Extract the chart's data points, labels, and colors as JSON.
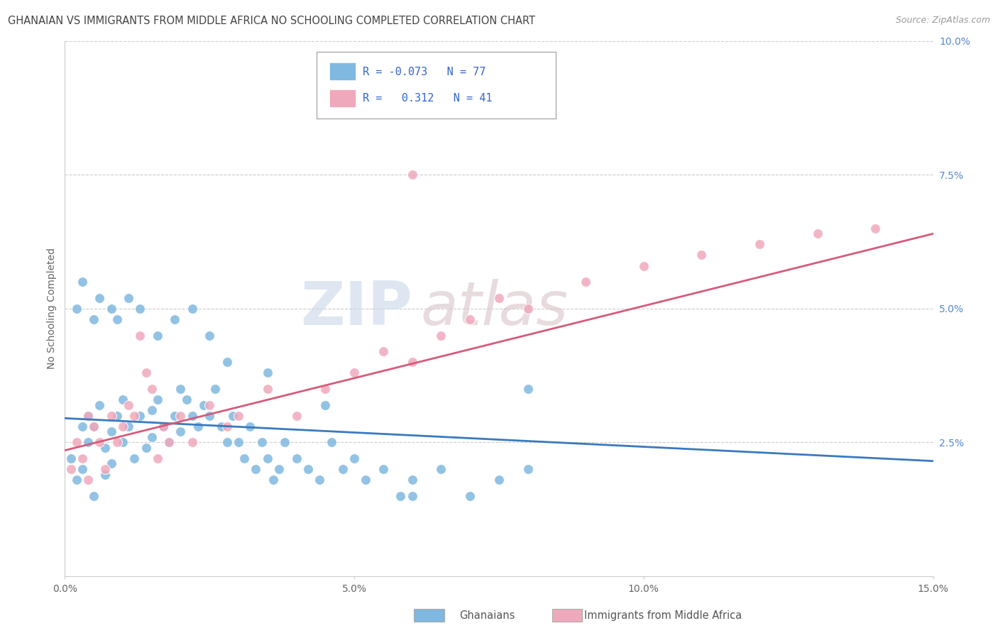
{
  "title": "GHANAIAN VS IMMIGRANTS FROM MIDDLE AFRICA NO SCHOOLING COMPLETED CORRELATION CHART",
  "source": "Source: ZipAtlas.com",
  "ylabel": "No Schooling Completed",
  "xlim": [
    0.0,
    0.15
  ],
  "ylim": [
    0.0,
    0.1
  ],
  "xtick_vals": [
    0.0,
    0.05,
    0.1,
    0.15
  ],
  "xtick_labels": [
    "0.0%",
    "5.0%",
    "10.0%",
    "15.0%"
  ],
  "ytick_vals": [
    0.0,
    0.025,
    0.05,
    0.075,
    0.1
  ],
  "ytick_labels": [
    "",
    "2.5%",
    "5.0%",
    "7.5%",
    "10.0%"
  ],
  "legend_line1": "R = -0.073   N = 77",
  "legend_line2": "R =   0.312   N = 41",
  "blue_scatter": "#7fb8e0",
  "pink_scatter": "#f0a8bc",
  "blue_line": "#3a7abf",
  "pink_line": "#d45c7a",
  "title_color": "#444444",
  "source_color": "#999999",
  "tick_color_x": "#666666",
  "tick_color_y": "#5588cc",
  "ylabel_color": "#666666",
  "grid_color": "#cccccc",
  "legend_text_color": "#3366cc",
  "watermark_zip_color": "#c8d8e8",
  "watermark_atlas_color": "#d8c4c8",
  "bottom_legend_color": "#555555",
  "ghanaian_x": [
    0.001,
    0.002,
    0.003,
    0.003,
    0.004,
    0.004,
    0.005,
    0.005,
    0.006,
    0.007,
    0.007,
    0.008,
    0.008,
    0.009,
    0.01,
    0.01,
    0.011,
    0.012,
    0.013,
    0.014,
    0.015,
    0.015,
    0.016,
    0.017,
    0.018,
    0.019,
    0.02,
    0.02,
    0.021,
    0.022,
    0.023,
    0.024,
    0.025,
    0.026,
    0.027,
    0.028,
    0.029,
    0.03,
    0.031,
    0.032,
    0.033,
    0.034,
    0.035,
    0.036,
    0.037,
    0.038,
    0.04,
    0.042,
    0.044,
    0.046,
    0.048,
    0.05,
    0.052,
    0.055,
    0.058,
    0.06,
    0.065,
    0.07,
    0.075,
    0.08,
    0.002,
    0.003,
    0.005,
    0.006,
    0.008,
    0.009,
    0.011,
    0.013,
    0.016,
    0.019,
    0.022,
    0.025,
    0.028,
    0.035,
    0.045,
    0.06,
    0.08
  ],
  "ghanaian_y": [
    0.022,
    0.018,
    0.028,
    0.02,
    0.025,
    0.03,
    0.028,
    0.015,
    0.032,
    0.024,
    0.019,
    0.027,
    0.021,
    0.03,
    0.025,
    0.033,
    0.028,
    0.022,
    0.03,
    0.024,
    0.031,
    0.026,
    0.033,
    0.028,
    0.025,
    0.03,
    0.035,
    0.027,
    0.033,
    0.03,
    0.028,
    0.032,
    0.03,
    0.035,
    0.028,
    0.025,
    0.03,
    0.025,
    0.022,
    0.028,
    0.02,
    0.025,
    0.022,
    0.018,
    0.02,
    0.025,
    0.022,
    0.02,
    0.018,
    0.025,
    0.02,
    0.022,
    0.018,
    0.02,
    0.015,
    0.018,
    0.02,
    0.015,
    0.018,
    0.02,
    0.05,
    0.055,
    0.048,
    0.052,
    0.05,
    0.048,
    0.052,
    0.05,
    0.045,
    0.048,
    0.05,
    0.045,
    0.04,
    0.038,
    0.032,
    0.015,
    0.035
  ],
  "immigrant_x": [
    0.001,
    0.002,
    0.003,
    0.004,
    0.004,
    0.005,
    0.006,
    0.007,
    0.008,
    0.009,
    0.01,
    0.011,
    0.012,
    0.013,
    0.014,
    0.015,
    0.016,
    0.017,
    0.018,
    0.02,
    0.022,
    0.025,
    0.028,
    0.03,
    0.035,
    0.04,
    0.045,
    0.05,
    0.055,
    0.06,
    0.065,
    0.07,
    0.075,
    0.08,
    0.09,
    0.1,
    0.11,
    0.12,
    0.13,
    0.14,
    0.06
  ],
  "immigrant_y": [
    0.02,
    0.025,
    0.022,
    0.03,
    0.018,
    0.028,
    0.025,
    0.02,
    0.03,
    0.025,
    0.028,
    0.032,
    0.03,
    0.045,
    0.038,
    0.035,
    0.022,
    0.028,
    0.025,
    0.03,
    0.025,
    0.032,
    0.028,
    0.03,
    0.035,
    0.03,
    0.035,
    0.038,
    0.042,
    0.04,
    0.045,
    0.048,
    0.052,
    0.05,
    0.055,
    0.058,
    0.06,
    0.062,
    0.064,
    0.065,
    0.075
  ]
}
